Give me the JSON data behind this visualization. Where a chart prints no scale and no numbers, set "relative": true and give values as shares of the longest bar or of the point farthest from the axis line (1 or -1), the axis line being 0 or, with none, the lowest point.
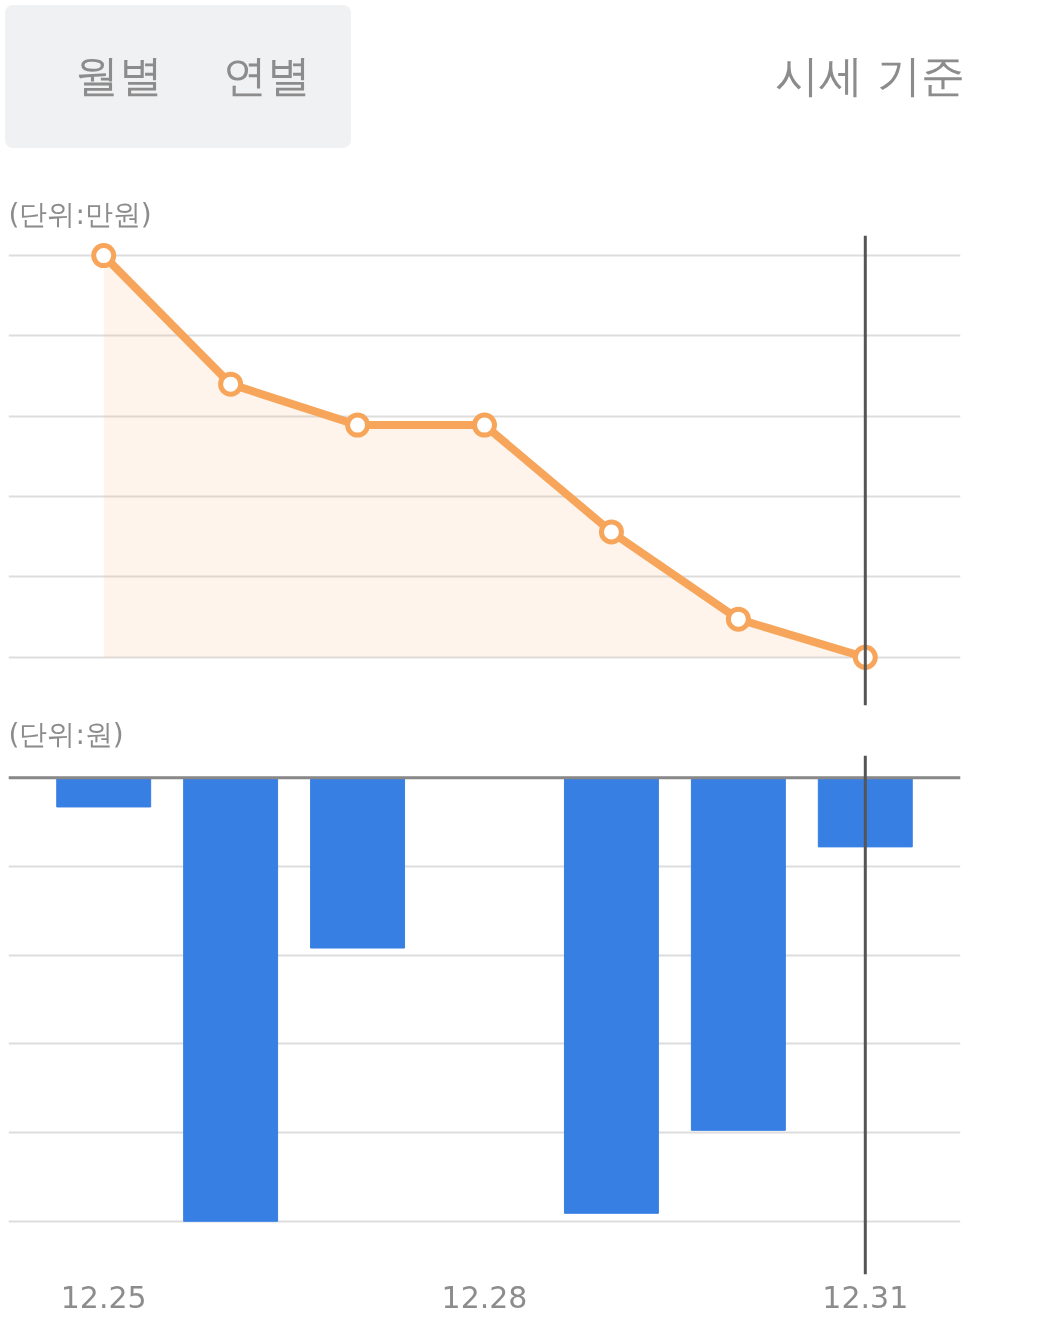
{
  "chart_data": [
    {
      "type": "area",
      "ylabel": "(단위:만원)",
      "annotations": [
        "월별",
        "연별",
        "시세 기준"
      ],
      "relative": true,
      "categories": [
        "12.25",
        null,
        null,
        "12.28",
        null,
        null,
        "12.31"
      ],
      "series": [
        {
          "color": "#f7a55a",
          "values": [
            1,
            0.68,
            0.578,
            0.578,
            0.312,
            0.095,
            0
          ]
        }
      ],
      "marker": "circle",
      "grid": "y",
      "tick_labels": false,
      "ref_lines": [
        {
          "axis": "x",
          "value": "12.31",
          "color": "#555555"
        }
      ]
    },
    {
      "type": "bar",
      "ylabel": "(단위:원)",
      "relative": true,
      "categories": [
        "12.25",
        null,
        null,
        "12.28",
        null,
        null,
        "12.31"
      ],
      "series": [
        {
          "color": "#377fe3",
          "values": [
            -0.066,
            -1,
            -0.384,
            0,
            -0.982,
            -0.795,
            -0.156
          ]
        }
      ],
      "grid": "y",
      "ref_lines": [
        {
          "axis": "x",
          "value": "12.31",
          "color": "#555555"
        }
      ]
    }
  ]
}
